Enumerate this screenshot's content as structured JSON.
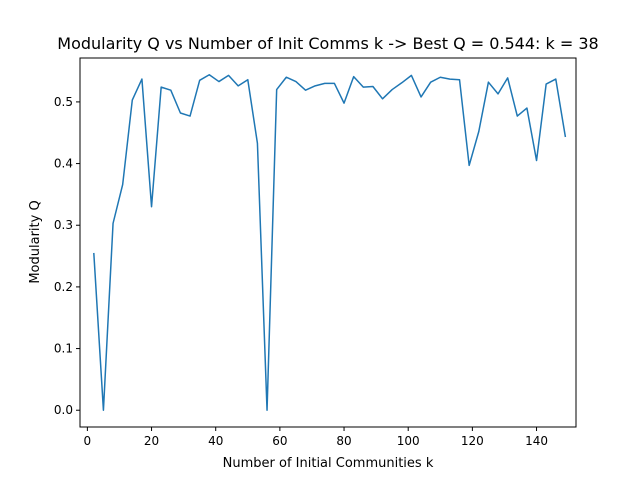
{
  "chart_data": {
    "type": "line",
    "title": "Modularity Q vs Number of Init Comms k -> Best Q = 0.544: k = 38",
    "xlabel": "Number of Initial Communities k",
    "ylabel": "Modularity Q",
    "xlim": [
      -2.3,
      152.3
    ],
    "ylim": [
      -0.0272,
      0.5712
    ],
    "xticks": [
      0,
      20,
      40,
      60,
      80,
      100,
      120,
      140
    ],
    "xtick_labels": [
      "0",
      "20",
      "40",
      "60",
      "80",
      "100",
      "120",
      "140"
    ],
    "yticks": [
      0.0,
      0.1,
      0.2,
      0.3,
      0.4,
      0.5
    ],
    "ytick_labels": [
      "0.0",
      "0.1",
      "0.2",
      "0.3",
      "0.4",
      "0.5"
    ],
    "grid": false,
    "color": "#1f77b4",
    "series": [
      {
        "x": [
          2,
          5,
          8,
          11,
          14,
          17,
          20,
          23,
          26,
          29,
          32,
          35,
          38,
          41,
          44,
          47,
          50,
          53,
          56,
          59,
          62,
          65,
          68,
          71,
          74,
          77,
          80,
          83,
          86,
          89,
          92,
          95,
          98,
          101,
          104,
          107,
          110,
          113,
          116,
          119,
          122,
          125,
          128,
          131,
          134,
          137,
          140,
          143,
          146,
          149
        ],
        "y": [
          0.255,
          0.0,
          0.303,
          0.366,
          0.503,
          0.537,
          0.33,
          0.524,
          0.519,
          0.482,
          0.477,
          0.535,
          0.544,
          0.533,
          0.543,
          0.526,
          0.536,
          0.433,
          0.0,
          0.52,
          0.54,
          0.533,
          0.519,
          0.526,
          0.53,
          0.53,
          0.498,
          0.541,
          0.524,
          0.525,
          0.505,
          0.52,
          0.531,
          0.543,
          0.508,
          0.532,
          0.54,
          0.537,
          0.536,
          0.397,
          0.452,
          0.532,
          0.513,
          0.539,
          0.477,
          0.49,
          0.405,
          0.529,
          0.537,
          0.443
        ]
      }
    ]
  }
}
